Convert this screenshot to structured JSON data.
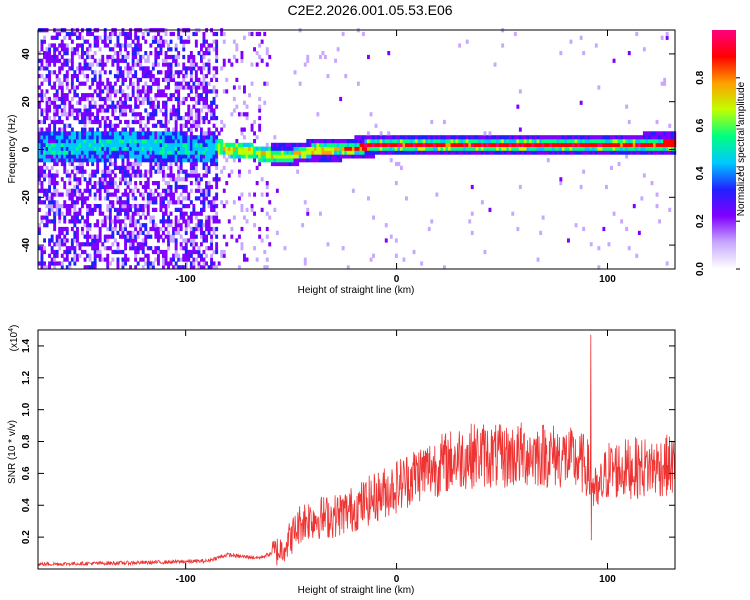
{
  "title": "C2E2.2026.001.05.53.E06",
  "chart_data": [
    {
      "type": "heatmap",
      "name": "spectrogram",
      "xlabel": "Height of straight line (km)",
      "ylabel": "Frequency (Hz)",
      "xlim": [
        -170,
        132
      ],
      "ylim": [
        -50,
        50
      ],
      "xticks": [
        -100,
        0,
        100
      ],
      "xtick_labels": [
        "-100",
        "0",
        "100"
      ],
      "yticks": [
        -40,
        -20,
        0,
        20,
        40
      ],
      "ytick_labels": [
        "-40",
        "-20",
        "0",
        "20",
        "40"
      ],
      "noise_region_end_km": -85,
      "sparse_region_end_km": -60,
      "ridge": {
        "description_points_x": [
          -170,
          -130,
          -100,
          -85,
          -75,
          -60,
          -50,
          -40,
          -30,
          -20,
          -10,
          0,
          20,
          40,
          60,
          80,
          100,
          132
        ],
        "freq_hz": [
          0,
          1,
          0,
          0,
          -1,
          -3,
          -3,
          -1,
          -1,
          0,
          1,
          1,
          1,
          1,
          1,
          1,
          1,
          2
        ]
      },
      "colorbar": {
        "label": "Normalized spectral amplitude",
        "range": [
          0.0,
          1.0
        ],
        "ticks": [
          0.0,
          0.2,
          0.4,
          0.6,
          0.8
        ],
        "tick_labels": [
          "0.0",
          "0.2",
          "0.4",
          "0.6",
          "0.8"
        ],
        "colors": [
          "#ffffff",
          "#c8a8ff",
          "#8000ff",
          "#2020ff",
          "#00c8ff",
          "#00ff80",
          "#c0ff00",
          "#ffa000",
          "#ff0000",
          "#ff0080"
        ]
      }
    },
    {
      "type": "line",
      "name": "snr",
      "xlabel": "Height of straight line (km)",
      "ylabel": "SNR (10 * v/v)",
      "scale_label": "(x10",
      "scale_exponent": "4",
      "scale_suffix": ")",
      "xlim": [
        -170,
        132
      ],
      "ylim": [
        0,
        1.5
      ],
      "xticks": [
        -100,
        0,
        100
      ],
      "xtick_labels": [
        "-100",
        "0",
        "100"
      ],
      "yticks": [
        0.2,
        0.4,
        0.6,
        0.8,
        1.0,
        1.2,
        1.4
      ],
      "ytick_labels": [
        "0.2",
        "0.4",
        "0.6",
        "0.8",
        "1.0",
        "1.2",
        "1.4"
      ],
      "color": "#ee3333",
      "envelope": {
        "x": [
          -170,
          -120,
          -90,
          -80,
          -75,
          -65,
          -55,
          -50,
          -45,
          -40,
          -30,
          -20,
          -10,
          0,
          10,
          20,
          30,
          40,
          50,
          60,
          70,
          80,
          90,
          95,
          100,
          110,
          120,
          132
        ],
        "y": [
          0.03,
          0.04,
          0.05,
          0.09,
          0.08,
          0.07,
          0.12,
          0.2,
          0.3,
          0.32,
          0.33,
          0.38,
          0.45,
          0.52,
          0.6,
          0.65,
          0.7,
          0.72,
          0.7,
          0.72,
          0.72,
          0.7,
          0.65,
          0.45,
          0.62,
          0.63,
          0.64,
          0.65
        ]
      },
      "peak": {
        "x": 92,
        "y": 1.47
      },
      "dip": {
        "x": 92,
        "y": 0.18
      }
    }
  ]
}
